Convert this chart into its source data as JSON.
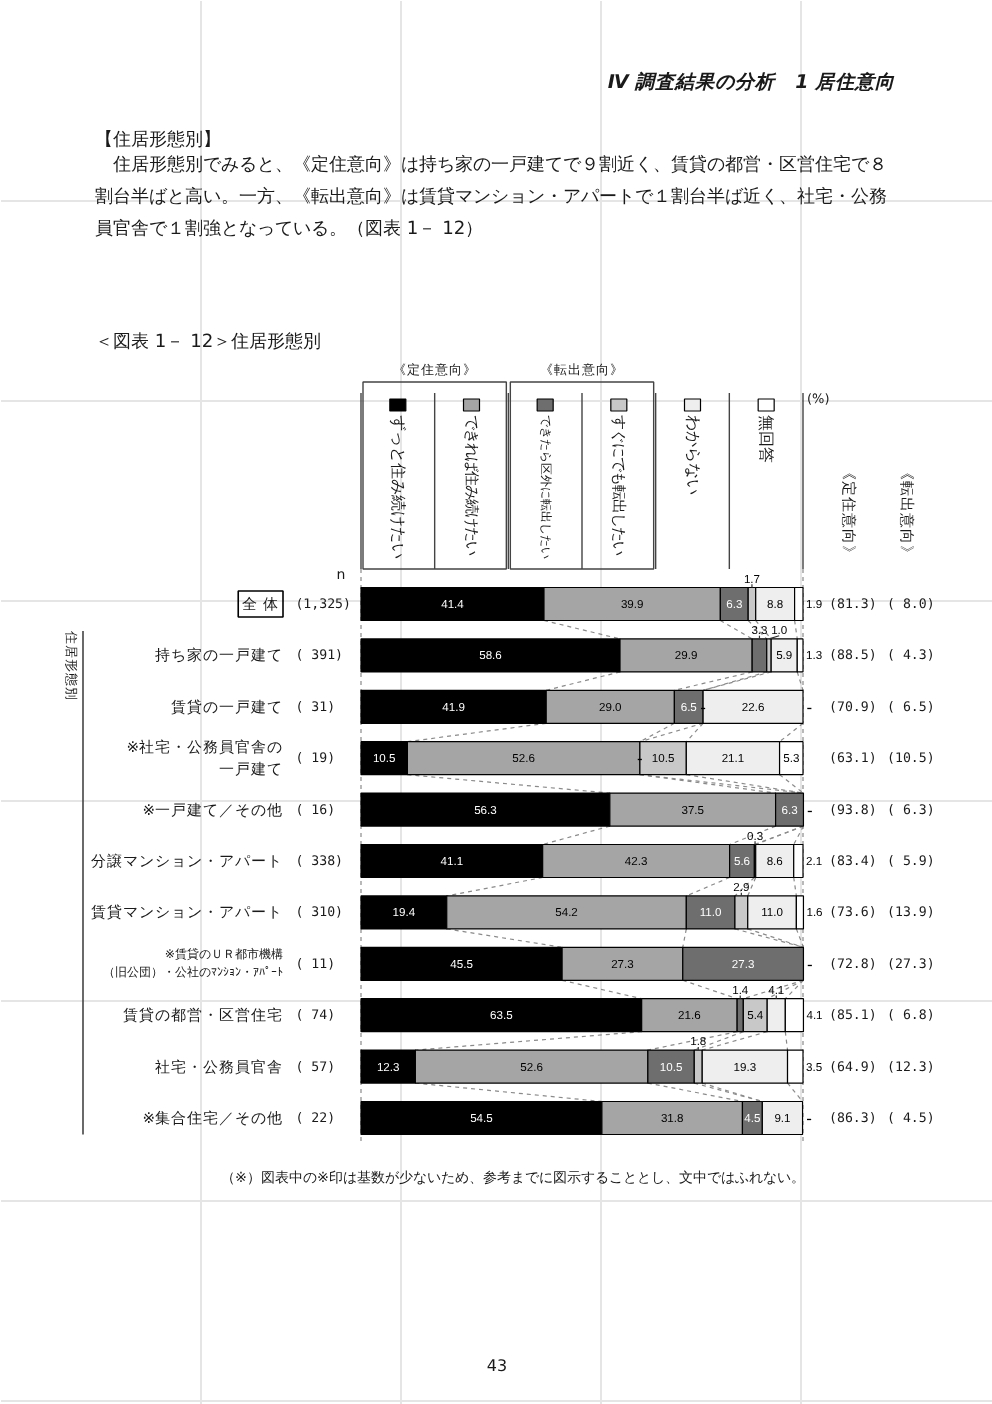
{
  "chart_data": {
    "type": "bar",
    "orientation": "horizontal",
    "stacked": true,
    "legend": "top",
    "tick_labels": "y",
    "title": "＜図表 1－ 12＞住居形態別",
    "categories": [
      "全 体",
      "持ち家の一戸建て",
      "賃貸の一戸建て",
      "※社宅・公務員官舎の一戸建て",
      "※一戸建て／その他",
      "分譲マンション・アパート",
      "賃貸マンション・アパート",
      "※賃貸のＵＲ都市機構（旧公団）・公社のﾏﾝｼｮﾝ・ｱﾊﾟｰﾄ",
      "賃貸の都営・区営住宅",
      "社宅・公務員官舎",
      "※集合住宅／その他"
    ],
    "xlim": [
      0,
      100
    ],
    "series": [
      {
        "name": "ずっと住み続けたい",
        "color": "#000000",
        "values": [
          41.4,
          58.6,
          41.9,
          10.5,
          56.3,
          41.1,
          19.4,
          45.5,
          63.5,
          12.3,
          54.5
        ],
        "value_labels": [
          "41.4",
          "58.6",
          "41.9",
          "10.5",
          "56.3",
          "41.1",
          "19.4",
          "45.5",
          "63.5",
          "12.3",
          "54.5"
        ]
      },
      {
        "name": "できれば住み続けたい",
        "color": "#a5a5a5",
        "values": [
          39.9,
          29.9,
          29.0,
          52.6,
          37.5,
          42.3,
          54.2,
          27.3,
          21.6,
          52.6,
          31.8
        ],
        "value_labels": [
          "39.9",
          "29.9",
          "29.0",
          "52.6",
          "37.5",
          "42.3",
          "54.2",
          "27.3",
          "21.6",
          "52.6",
          "31.8"
        ]
      },
      {
        "name": "できたら区外に転出したい",
        "color": "#6e6e6e",
        "values": [
          6.3,
          3.3,
          6.5,
          0,
          6.3,
          5.6,
          11.0,
          27.3,
          1.4,
          10.5,
          4.5
        ],
        "value_labels": [
          "6.3",
          "3.3",
          "6.5",
          null,
          "6.3",
          "5.6",
          "11.0",
          "27.3",
          "1.4",
          "10.5",
          "4.5"
        ]
      },
      {
        "name": "すぐにでも転出したい",
        "color": "#c8c8c8",
        "values": [
          1.7,
          1.0,
          0,
          10.5,
          0,
          0.3,
          2.9,
          0,
          5.4,
          1.8,
          0
        ],
        "value_labels": [
          "1.7",
          "1.0",
          null,
          "10.5",
          null,
          "0.3",
          "2.9",
          null,
          "5.4",
          "1.8",
          null
        ]
      },
      {
        "name": "わからない",
        "color": "#eeeeee",
        "values": [
          8.8,
          5.9,
          22.6,
          21.1,
          0,
          8.6,
          11.0,
          0,
          4.1,
          19.3,
          9.1
        ],
        "value_labels": [
          "8.8",
          "5.9",
          "22.6",
          "21.1",
          null,
          "8.6",
          "11.0",
          null,
          "4.1",
          "19.3",
          "9.1"
        ]
      },
      {
        "name": "無回答",
        "color": "#ffffff",
        "values": [
          1.9,
          1.3,
          0,
          5.3,
          0,
          2.1,
          1.6,
          0,
          4.1,
          3.5,
          0
        ],
        "value_labels": [
          "1.9",
          "1.3",
          "-",
          "5.3",
          "-",
          "2.1",
          "1.6",
          "-",
          "4.1",
          "3.5",
          "-"
        ]
      }
    ],
    "annotations": [
      "Ⅳ 調査結果の分析　1 居住意向",
      "【住居形態別】",
      "住居形態別でみると、《定住意向》は持ち家の一戸建てで９割近く、賃貸の都営・区営住宅で８割台半ばと高い。一方、《転出意向》は賃貸マンション・アパートで１割台半ば近く、社宅・公務員官舎で１割強となっている。（図表 1－ 12）",
      "《定住意向》",
      "《転出意向》",
      "(%)",
      "n",
      "《定住意向》",
      "《転出意向》",
      "住居形態別",
      "（※）図表中の※印は基数が少ないため、参考までに図示することとし、文中ではふれない。",
      "43",
      "(1,325)",
      "(81.3)",
      "( 8.0)",
      "(  391)",
      "(88.5)",
      "( 4.3)",
      "(   31)",
      "(70.9)",
      "( 6.5)",
      "(   19)",
      "(63.1)",
      "(10.5)",
      "(   16)",
      "(93.8)",
      "( 6.3)",
      "(  338)",
      "(83.4)",
      "( 5.9)",
      "(  310)",
      "(73.6)",
      "(13.9)",
      "(   11)",
      "(72.8)",
      "(27.3)",
      "(   74)",
      "(85.1)",
      "( 6.8)",
      "(   57)",
      "(64.9)",
      "(12.3)",
      "(   22)",
      "(86.3)",
      "( 4.5)",
      {
        "text": "-",
        "x": 77.4,
        "y": "賃貸の一戸建て"
      },
      {
        "text": "-",
        "x": 63.1,
        "y": "※社宅・公務員官舎の一戸建て"
      }
    ]
  }
}
